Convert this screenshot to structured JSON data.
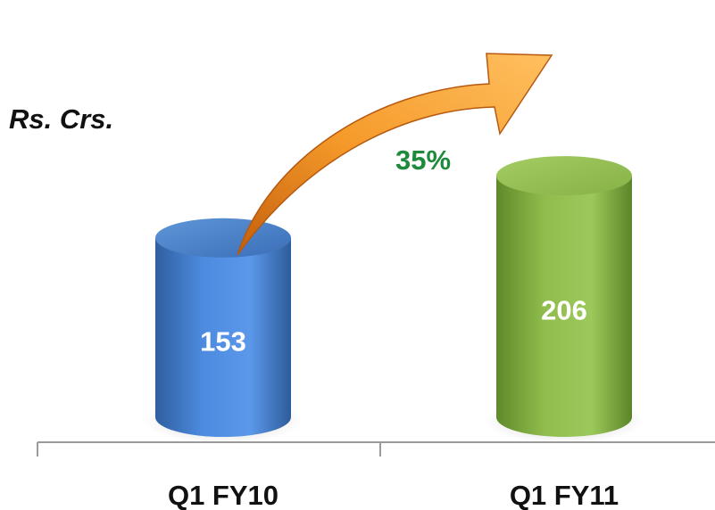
{
  "unit_label": "Rs. Crs.",
  "colors": {
    "bar_1": "#3f78c8",
    "bar_2": "#7aa33e",
    "growth_label": "#1f8a3c",
    "arrow": "#f08a1c",
    "axis": "#9a9a9a"
  },
  "chart_data": {
    "type": "bar",
    "categories": [
      "Q1 FY10",
      "Q1 FY11"
    ],
    "values": [
      153,
      206
    ],
    "data_labels": [
      "153",
      "206"
    ],
    "annotation": "35%",
    "ylabel": "Rs. Crs.",
    "grid": false,
    "legend": false,
    "bar_shape": "cylinder"
  }
}
